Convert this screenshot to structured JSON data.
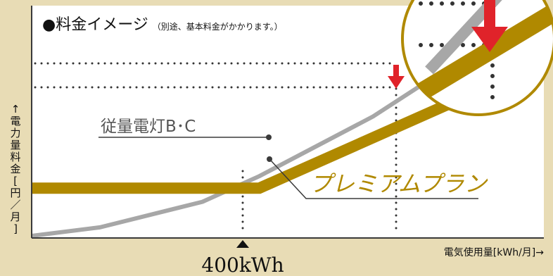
{
  "title": {
    "bullet": "●",
    "main": "料金イメージ",
    "note": "（別途、基本料金がかかります。）"
  },
  "labels": {
    "ylabel": "↑\n電\n力\n量\n料\n金\n[\n円\n／\n月\n]",
    "xlabel": "電気使用量[kWh/月]→",
    "threshold_marker": "▲",
    "threshold": "400kWh",
    "series_standard": "従量電灯B･C",
    "series_premium": "プレミアムプラン"
  },
  "colors": {
    "background": "#e8dcb5",
    "plot_area": "#ffffff",
    "standard_line": "#a7a7a7",
    "premium_line": "#b08900",
    "arrow": "#e0232a",
    "axis": "#3a3a3a",
    "dotted": "#333333",
    "zoom_circle_stroke": "#b08900"
  },
  "chart_data": {
    "type": "line",
    "title": "料金イメージ",
    "subtitle": "（別途、基本料金がかかります。）",
    "xlabel": "電気使用量[kWh/月]→",
    "ylabel": "電力量料金[円／月]",
    "annotation": "400kWh",
    "series": [
      {
        "name": "従量電灯B･C",
        "x": [
          0,
          120,
          300,
          400,
          600,
          900
        ],
        "y": [
          0,
          0.05,
          0.2,
          0.35,
          0.7,
          1.35
        ]
      },
      {
        "name": "プレミアムプラン",
        "x": [
          0,
          400,
          900
        ],
        "y": [
          0.28,
          0.28,
          1.02
        ]
      }
    ]
  }
}
